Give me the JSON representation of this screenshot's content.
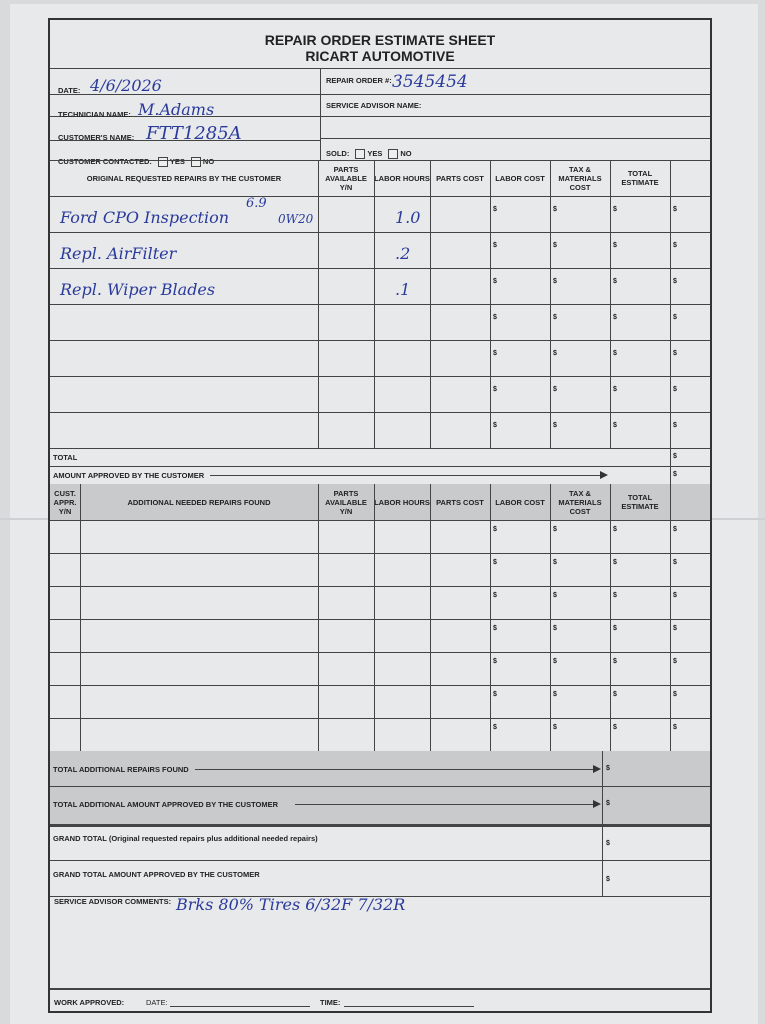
{
  "title": "REPAIR ORDER ESTIMATE SHEET",
  "subtitle": "RICART AUTOMOTIVE",
  "fields": {
    "date_label": "DATE:",
    "date_value": "4/6/2026",
    "technician_label": "TECHNICIAN NAME:",
    "technician_value": "M.Adams",
    "customer_label": "CUSTOMER'S NAME:",
    "customer_value": "FTT1285A",
    "contacted_label": "CUSTOMER CONTACTED:",
    "repair_order_label": "REPAIR ORDER #:",
    "repair_order_value": "3545454",
    "advisor_label": "SERVICE ADVISOR NAME:",
    "sold_label": "SOLD:",
    "yes": "YES",
    "no": "NO"
  },
  "original": {
    "headers": [
      "ORIGINAL REQUESTED REPAIRS BY THE CUSTOMER",
      "PARTS AVAILABLE Y/N",
      "LABOR HOURS",
      "PARTS COST",
      "LABOR COST",
      "TAX & MATERIALS COST",
      "TOTAL ESTIMATE"
    ],
    "rows": [
      {
        "repair": "Ford CPO Inspection",
        "note_top": "6.9",
        "note": "0W20",
        "labor_hours": "1.0"
      },
      {
        "repair": "Repl. AirFilter",
        "labor_hours": ".2"
      },
      {
        "repair": "Repl. Wiper Blades",
        "labor_hours": ".1"
      },
      {
        "repair": "",
        "labor_hours": ""
      },
      {
        "repair": "",
        "labor_hours": ""
      },
      {
        "repair": "",
        "labor_hours": ""
      },
      {
        "repair": "",
        "labor_hours": ""
      }
    ],
    "total_label": "TOTAL",
    "approved_label": "AMOUNT APPROVED BY THE CUSTOMER"
  },
  "currency": "$",
  "additional": {
    "headers": [
      "CUST. APPR. Y/N",
      "ADDITIONAL NEEDED REPAIRS FOUND",
      "PARTS AVAILABLE Y/N",
      "LABOR HOURS",
      "PARTS COST",
      "LABOR COST",
      "TAX & MATERIALS COST",
      "TOTAL ESTIMATE"
    ],
    "row_count": 7,
    "total_label": "TOTAL ADDITIONAL REPAIRS FOUND",
    "approved_label": "TOTAL ADDITIONAL AMOUNT APPROVED BY THE CUSTOMER"
  },
  "grand_total_label": "GRAND TOTAL (Original requested repairs plus additional needed repairs)",
  "grand_approved_label": "GRAND TOTAL AMOUNT APPROVED BY THE CUSTOMER",
  "comments_label": "SERVICE ADVISOR COMMENTS:",
  "comments_value": "Brks 80%   Tires 6/32F 7/32R",
  "work_approved_label": "WORK APPROVED:",
  "work_date_label": "DATE:",
  "work_time_label": "TIME:"
}
